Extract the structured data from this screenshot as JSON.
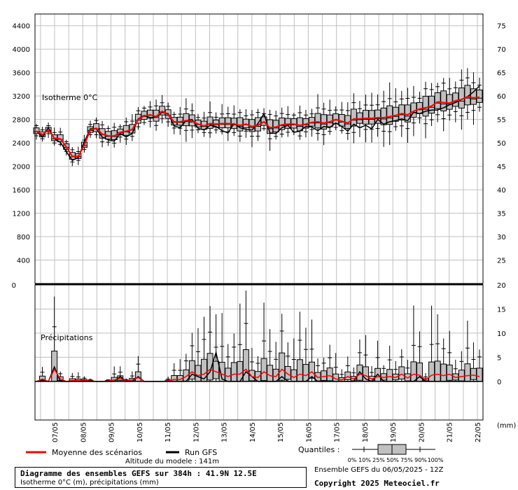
{
  "chart_data": [
    {
      "type": "box",
      "label": "Isotherme 0°C",
      "ylim_left": [
        0,
        4600
      ],
      "ylim_right": [
        20,
        77.5
      ],
      "left_ticks": [
        400,
        800,
        1200,
        1600,
        2000,
        2400,
        2800,
        3200,
        3600,
        4000,
        4400
      ],
      "right_ticks": [
        25,
        30,
        35,
        40,
        45,
        50,
        55,
        60,
        65,
        70,
        75
      ],
      "series": [
        {
          "name": "Moyenne des scénarios",
          "color": "#ff0000",
          "values": [
            2600,
            2540,
            2620,
            2480,
            2470,
            2330,
            2170,
            2170,
            2360,
            2620,
            2650,
            2550,
            2520,
            2520,
            2580,
            2600,
            2630,
            2800,
            2860,
            2880,
            2850,
            2940,
            2880,
            2760,
            2760,
            2780,
            2770,
            2720,
            2690,
            2730,
            2720,
            2730,
            2730,
            2720,
            2700,
            2720,
            2680,
            2700,
            2760,
            2660,
            2670,
            2710,
            2720,
            2720,
            2700,
            2720,
            2750,
            2760,
            2740,
            2760,
            2800,
            2770,
            2740,
            2810,
            2810,
            2820,
            2820,
            2830,
            2830,
            2850,
            2870,
            2900,
            2880,
            2940,
            2980,
            3000,
            3030,
            3100,
            3090,
            3080,
            3120,
            3140,
            3190,
            3170,
            3180
          ]
        },
        {
          "name": "Run GFS",
          "color": "#000000",
          "values": [
            2600,
            2500,
            2660,
            2470,
            2410,
            2250,
            2100,
            2150,
            2420,
            2640,
            2640,
            2500,
            2450,
            2430,
            2560,
            2500,
            2560,
            2810,
            2870,
            2830,
            2840,
            2920,
            2900,
            2690,
            2660,
            2780,
            2800,
            2650,
            2620,
            2700,
            2680,
            2610,
            2570,
            2730,
            2660,
            2630,
            2620,
            2730,
            2900,
            2570,
            2560,
            2660,
            2700,
            2580,
            2600,
            2680,
            2670,
            2610,
            2680,
            2660,
            2740,
            2680,
            2600,
            2720,
            2660,
            2700,
            2640,
            2800,
            2720,
            2760,
            2780,
            2810,
            2780,
            2920,
            2900,
            2940,
            2960,
            2960,
            3000,
            3050,
            3090,
            3140,
            3190,
            3270,
            3370
          ]
        }
      ]
    },
    {
      "type": "box",
      "label": "Précipitations",
      "ylim": [
        -8,
        20
      ],
      "ticks": [
        0,
        5,
        10,
        15,
        20
      ],
      "unit": "(mm)",
      "series": [
        {
          "name": "Moyenne des scénarios",
          "color": "#ff0000",
          "values": [
            0,
            0.5,
            0,
            2.5,
            0.5,
            0,
            0.2,
            0.2,
            0.2,
            0.1,
            0,
            0,
            0.1,
            0.3,
            0.6,
            0.1,
            0.3,
            0.8,
            0,
            0,
            0,
            0,
            0.1,
            0.4,
            0.4,
            1,
            2,
            1.2,
            1.5,
            2.5,
            2,
            1.5,
            1,
            1.5,
            1.5,
            2.5,
            1,
            0.8,
            2,
            1.2,
            1,
            2.5,
            1.5,
            0.8,
            1.5,
            1.2,
            2,
            0.8,
            1,
            1.2,
            0.5,
            0.3,
            1,
            0.5,
            1.5,
            1.2,
            0.5,
            1,
            0.8,
            1,
            0.8,
            1.5,
            0.7,
            1.5,
            1.3,
            0.3,
            1.3,
            1.5,
            1.2,
            1.5,
            0.8,
            1,
            1.2,
            1.3,
            1
          ]
        },
        {
          "name": "Run GFS",
          "color": "#000000",
          "values": [
            0,
            0.3,
            0,
            3,
            0,
            0,
            0,
            0,
            0,
            0,
            0,
            0,
            0,
            0,
            1,
            0,
            0,
            1,
            0,
            0,
            0,
            0,
            0,
            0,
            0,
            0,
            1.5,
            1,
            0.5,
            2,
            6,
            0.5,
            0,
            0,
            0,
            2,
            1,
            0,
            0,
            0,
            0,
            1,
            0,
            0,
            0,
            0,
            1,
            0,
            0,
            0,
            0,
            0,
            0,
            0,
            2,
            0.5,
            0,
            1.5,
            0,
            0,
            0,
            0,
            0,
            0,
            1,
            0,
            0,
            0,
            0,
            0,
            0,
            0,
            0,
            0,
            0
          ]
        }
      ]
    }
  ],
  "x_labels": [
    "07/05",
    "08/05",
    "09/05",
    "10/05",
    "11/05",
    "12/05",
    "13/05",
    "14/05",
    "15/05",
    "16/05",
    "17/05",
    "18/05",
    "19/05",
    "20/05",
    "21/05",
    "22/05"
  ],
  "legend": {
    "mean": "Moyenne des scénarios",
    "gfs": "Run GFS",
    "quantiles_label": "Quantiles :",
    "quantile_ticks": [
      "0%",
      "10%",
      "25%",
      "50%",
      "75%",
      "90%",
      "100%"
    ]
  },
  "info": {
    "altitude": "Altitude du modele : 141m",
    "title": "Diagramme des ensembles GEFS sur 384h : 41.9N 12.5E",
    "subtitle": "Isotherme 0°C (m), précipitations (mm)",
    "ensemble": "Ensemble GEFS du 06/05/2025 - 12Z",
    "copyright": "Copyright 2025 Meteociel.fr"
  },
  "colors": {
    "mean": "#ff0000",
    "gfs": "#000000",
    "box_fill": "#c0c0c0",
    "grid": "#c0c0c0"
  }
}
